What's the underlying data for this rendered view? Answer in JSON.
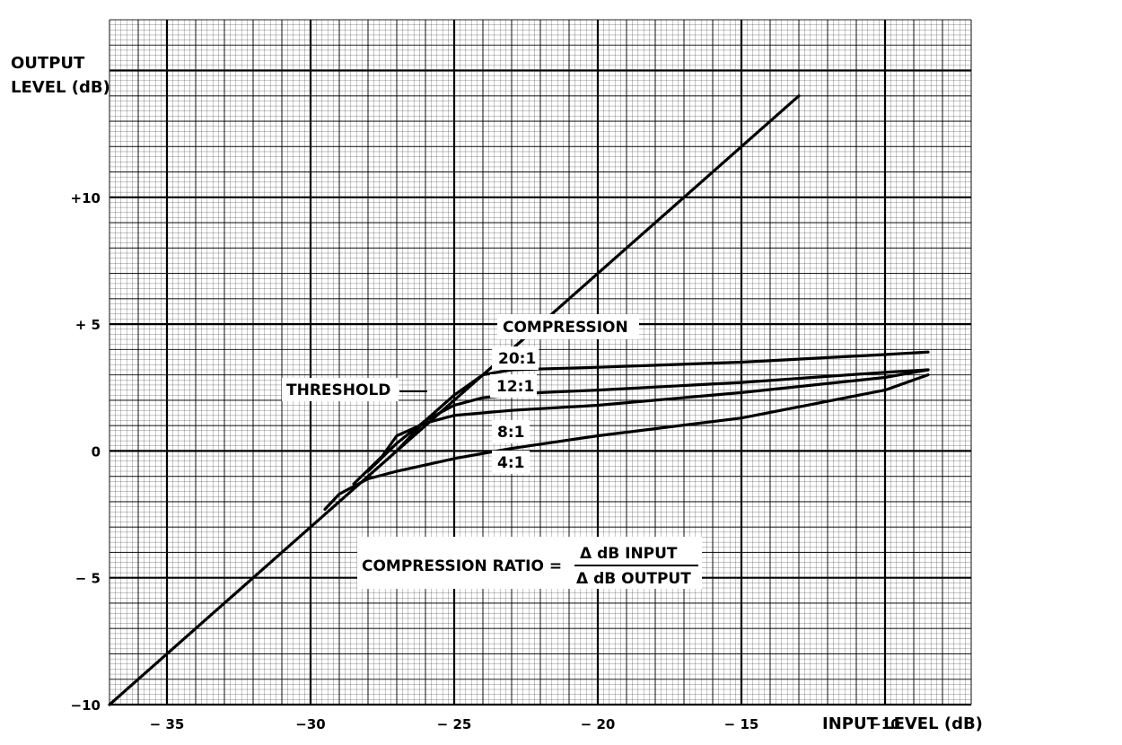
{
  "chart_data": {
    "type": "line",
    "xlabel": "INPUT LEVEL (dB)",
    "ylabel_lines": [
      "OUTPUT",
      "LEVEL (dB)"
    ],
    "xlim": [
      -37,
      -7
    ],
    "ylim": [
      -10,
      17
    ],
    "x_ticks": [
      {
        "value": -35,
        "label": "− 35"
      },
      {
        "value": -30,
        "label": "−30"
      },
      {
        "value": -25,
        "label": "− 25"
      },
      {
        "value": -20,
        "label": "− 20"
      },
      {
        "value": -15,
        "label": "− 15"
      },
      {
        "value": -10,
        "label": "−10"
      }
    ],
    "y_ticks": [
      {
        "value": 10,
        "label": "+10"
      },
      {
        "value": 5,
        "label": "+ 5"
      },
      {
        "value": 0,
        "label": "0"
      },
      {
        "value": -5,
        "label": "− 5"
      },
      {
        "value": -10,
        "label": "−10"
      }
    ],
    "grid": true,
    "series": [
      {
        "key": "unity",
        "points": [
          [
            -37,
            -10
          ],
          [
            -13,
            14
          ]
        ]
      },
      {
        "key": "r20",
        "points": [
          [
            -27,
            0
          ],
          [
            -26,
            1.2
          ],
          [
            -25,
            2.2
          ],
          [
            -24,
            3.0
          ],
          [
            -23,
            3.2
          ],
          [
            -20,
            3.3
          ],
          [
            -15,
            3.5
          ],
          [
            -10,
            3.8
          ],
          [
            -8.5,
            3.9
          ]
        ]
      },
      {
        "key": "r12",
        "points": [
          [
            -28,
            -0.8
          ],
          [
            -27,
            0.3
          ],
          [
            -26,
            1.2
          ],
          [
            -25,
            1.8
          ],
          [
            -24,
            2.1
          ],
          [
            -22,
            2.3
          ],
          [
            -20,
            2.4
          ],
          [
            -15,
            2.7
          ],
          [
            -10,
            3.1
          ],
          [
            -8.5,
            3.2
          ]
        ]
      },
      {
        "key": "r8",
        "points": [
          [
            -28.5,
            -1.3
          ],
          [
            -27.5,
            -0.2
          ],
          [
            -27,
            0.6
          ],
          [
            -26,
            1.1
          ],
          [
            -25,
            1.4
          ],
          [
            -23,
            1.6
          ],
          [
            -20,
            1.8
          ],
          [
            -15,
            2.3
          ],
          [
            -10,
            2.9
          ],
          [
            -8.5,
            3.2
          ]
        ]
      },
      {
        "key": "r4",
        "points": [
          [
            -29.5,
            -2.3
          ],
          [
            -29,
            -1.7
          ],
          [
            -28,
            -1.1
          ],
          [
            -27,
            -0.8
          ],
          [
            -25,
            -0.3
          ],
          [
            -23,
            0.1
          ],
          [
            -20,
            0.6
          ],
          [
            -15,
            1.3
          ],
          [
            -10,
            2.4
          ],
          [
            -8.5,
            3.0
          ]
        ]
      }
    ],
    "annotations": {
      "compression": "COMPRESSION",
      "r20": "20:1",
      "r12": "12:1",
      "r8": "8:1",
      "r4": "4:1",
      "threshold": "THRESHOLD",
      "formula_lhs": "COMPRESSION RATIO =",
      "formula_num": "Δ dB INPUT",
      "formula_den": "Δ dB OUTPUT"
    }
  }
}
